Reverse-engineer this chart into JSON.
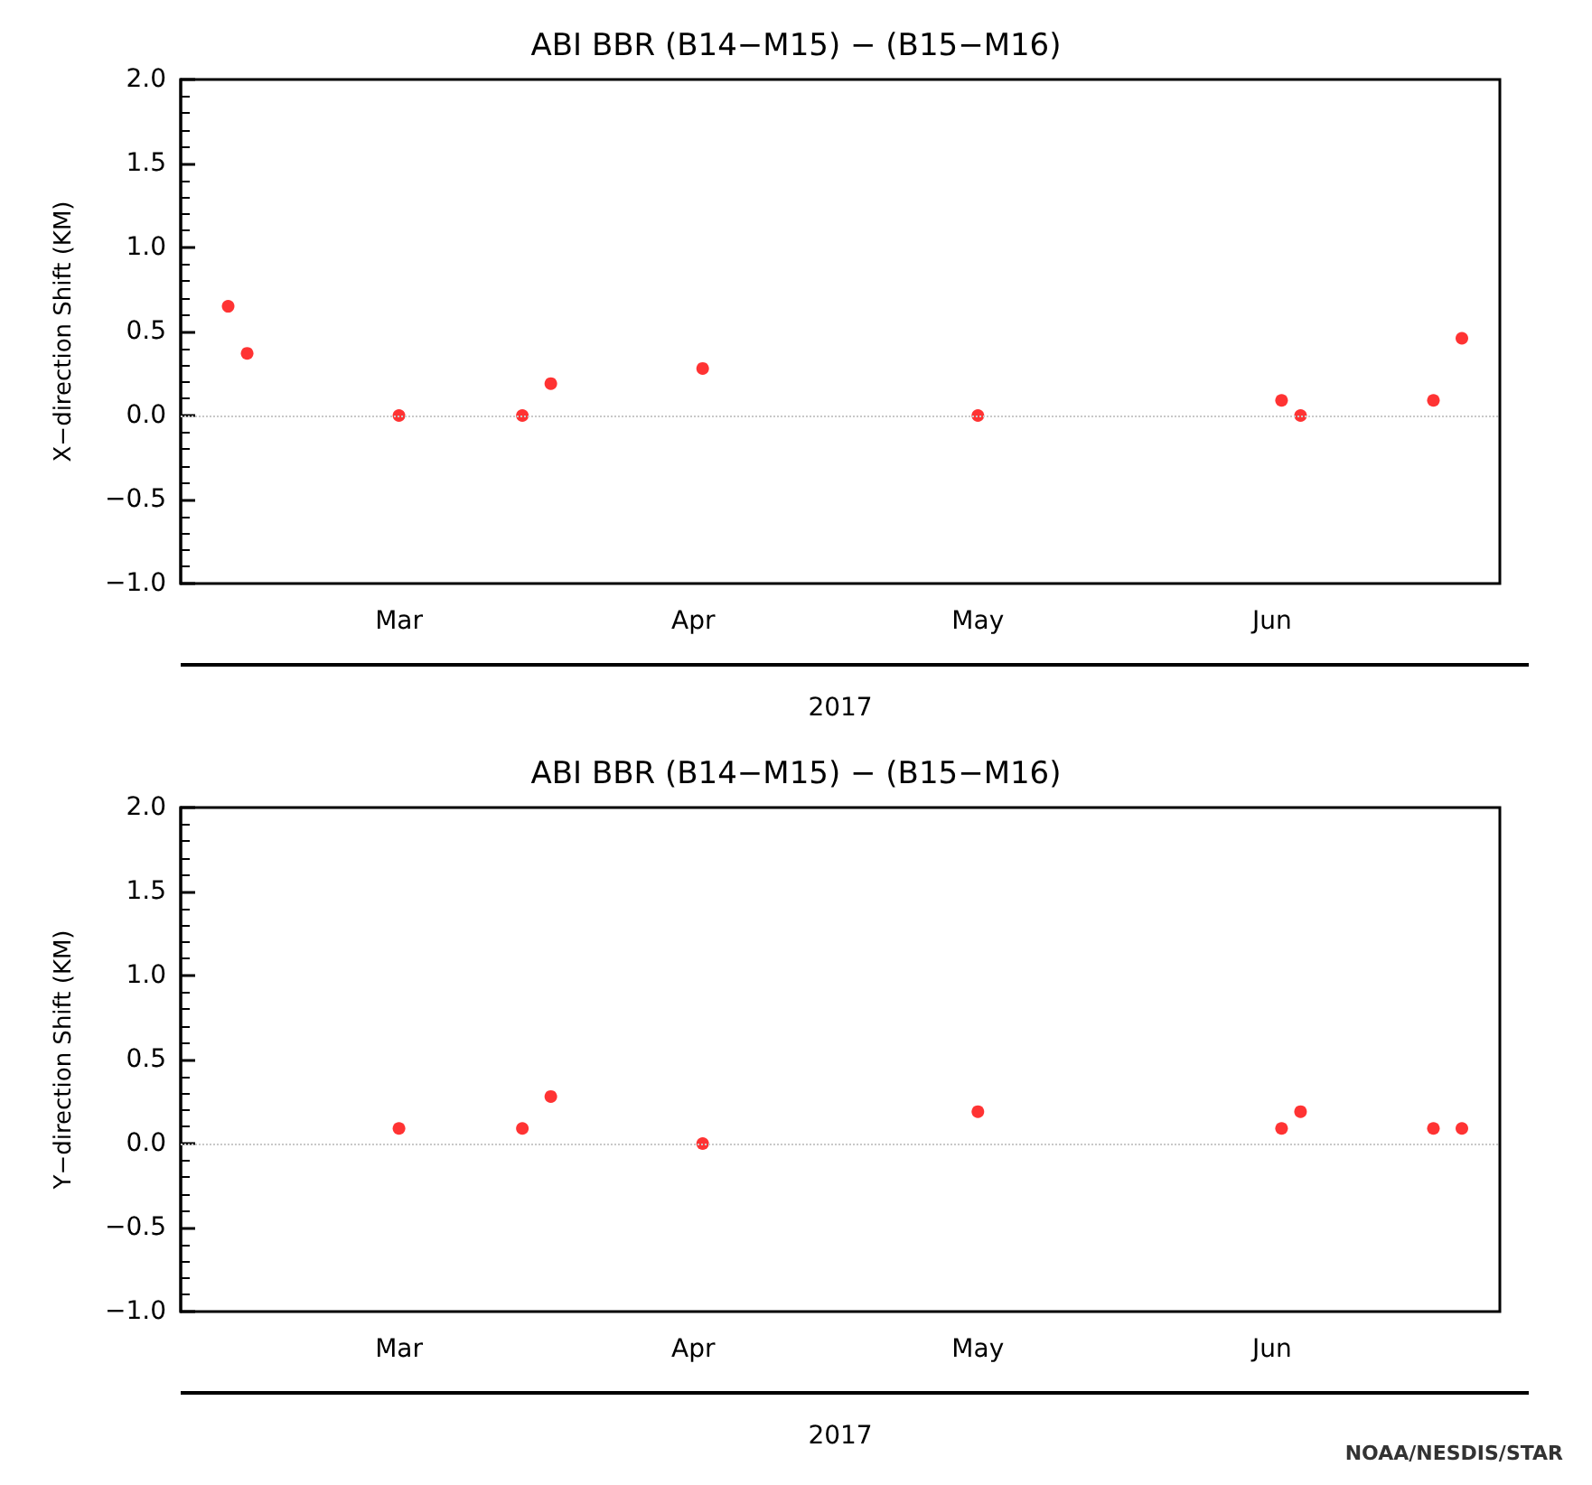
{
  "chart_data": [
    {
      "type": "scatter",
      "title": "ABI BBR (B14−M15) − (B15−M16)",
      "ylabel": "X−direction Shift (KM)",
      "xlabel": "2017",
      "x": [
        "2017-02-11",
        "2017-02-13",
        "2017-03-01",
        "2017-03-14",
        "2017-03-17",
        "2017-04-02",
        "2017-05-01",
        "2017-06-02",
        "2017-06-04",
        "2017-06-18",
        "2017-06-21"
      ],
      "series": [
        {
          "color": "#ff0000",
          "values": [
            0.65,
            0.37,
            0.0,
            0.0,
            0.19,
            0.28,
            0.0,
            0.09,
            0.0,
            0.09,
            0.46
          ]
        }
      ],
      "marker": "circle",
      "xlim": [
        "2017-02-06",
        "2017-06-25"
      ],
      "xticks": [
        {
          "value": "2017-03-01",
          "label": "Mar"
        },
        {
          "value": "2017-04-01",
          "label": "Apr"
        },
        {
          "value": "2017-05-01",
          "label": "May"
        },
        {
          "value": "2017-06-01",
          "label": "Jun"
        }
      ],
      "ylim": [
        -1.0,
        2.0
      ],
      "yticks": [
        {
          "value": -1.0,
          "label": "−1.0"
        },
        {
          "value": -0.5,
          "label": "−0.5"
        },
        {
          "value": 0.0,
          "label": "0.0"
        },
        {
          "value": 0.5,
          "label": "0.5"
        },
        {
          "value": 1.0,
          "label": "1.0"
        },
        {
          "value": 1.5,
          "label": "1.5"
        },
        {
          "value": 2.0,
          "label": "2.0"
        }
      ],
      "ref_lines": [
        {
          "axis": "y",
          "value": 0,
          "label": null,
          "color": "#c8c8c8",
          "line_style": "dotted"
        }
      ]
    },
    {
      "type": "scatter",
      "title": "ABI BBR (B14−M15) − (B15−M16)",
      "ylabel": "Y−direction Shift (KM)",
      "xlabel": "2017",
      "x": [
        "2017-03-01",
        "2017-03-14",
        "2017-03-17",
        "2017-04-02",
        "2017-05-01",
        "2017-06-02",
        "2017-06-04",
        "2017-06-18",
        "2017-06-21"
      ],
      "series": [
        {
          "color": "#ff0000",
          "values": [
            0.09,
            0.09,
            0.28,
            0.0,
            0.19,
            0.09,
            0.19,
            0.09,
            0.09
          ]
        }
      ],
      "marker": "circle",
      "xlim": [
        "2017-02-06",
        "2017-06-25"
      ],
      "xticks": [
        {
          "value": "2017-03-01",
          "label": "Mar"
        },
        {
          "value": "2017-04-01",
          "label": "Apr"
        },
        {
          "value": "2017-05-01",
          "label": "May"
        },
        {
          "value": "2017-06-01",
          "label": "Jun"
        }
      ],
      "ylim": [
        -1.0,
        2.0
      ],
      "yticks": [
        {
          "value": -1.0,
          "label": "−1.0"
        },
        {
          "value": -0.5,
          "label": "−0.5"
        },
        {
          "value": 0.0,
          "label": "0.0"
        },
        {
          "value": 0.5,
          "label": "0.5"
        },
        {
          "value": 1.0,
          "label": "1.0"
        },
        {
          "value": 1.5,
          "label": "1.5"
        },
        {
          "value": 2.0,
          "label": "2.0"
        }
      ],
      "ref_lines": [
        {
          "axis": "y",
          "value": 0,
          "label": null,
          "color": "#c8c8c8",
          "line_style": "dotted"
        }
      ],
      "annotations": [
        "NOAA/NESDIS/STAR"
      ]
    }
  ]
}
